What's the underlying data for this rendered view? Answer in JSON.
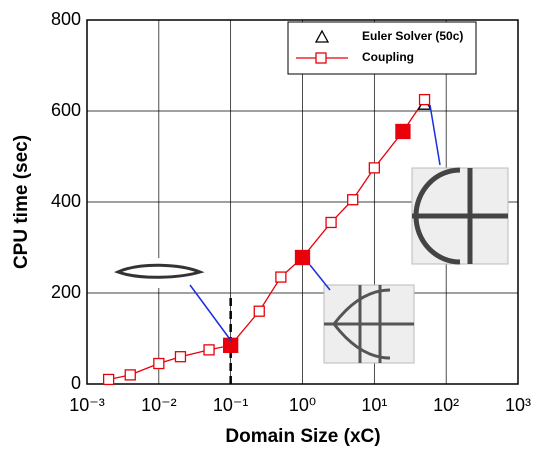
{
  "chart_data": {
    "type": "line",
    "xlabel": "Domain Size (xC)",
    "ylabel": "CPU time (sec)",
    "xscale": "log",
    "xlim": [
      0.001,
      1000
    ],
    "ylim": [
      0,
      800
    ],
    "xticks": [
      {
        "value": 0.001,
        "label": "10⁻³"
      },
      {
        "value": 0.01,
        "label": "10⁻²"
      },
      {
        "value": 0.1,
        "label": "10⁻¹"
      },
      {
        "value": 1,
        "label": "10⁰"
      },
      {
        "value": 10,
        "label": "10¹"
      },
      {
        "value": 100,
        "label": "10²"
      },
      {
        "value": 1000,
        "label": "10³"
      }
    ],
    "yticks": [
      0,
      200,
      400,
      600,
      800
    ],
    "grid": true,
    "legend": "upper right",
    "series": [
      {
        "name": "Euler Solver (50c)",
        "color": "#000000",
        "marker": "triangle",
        "x": [
          50
        ],
        "values": [
          615
        ]
      },
      {
        "name": "Coupling",
        "color": "#e8000b",
        "marker": "square",
        "line": true,
        "filled_markers": [
          5,
          8,
          12
        ],
        "x": [
          0.002,
          0.004,
          0.01,
          0.02,
          0.05,
          0.1,
          0.25,
          0.5,
          1,
          2.5,
          5,
          10,
          25,
          50
        ],
        "values": [
          10,
          20,
          45,
          60,
          75,
          85,
          160,
          235,
          278,
          355,
          405,
          475,
          555,
          625
        ]
      }
    ]
  }
}
